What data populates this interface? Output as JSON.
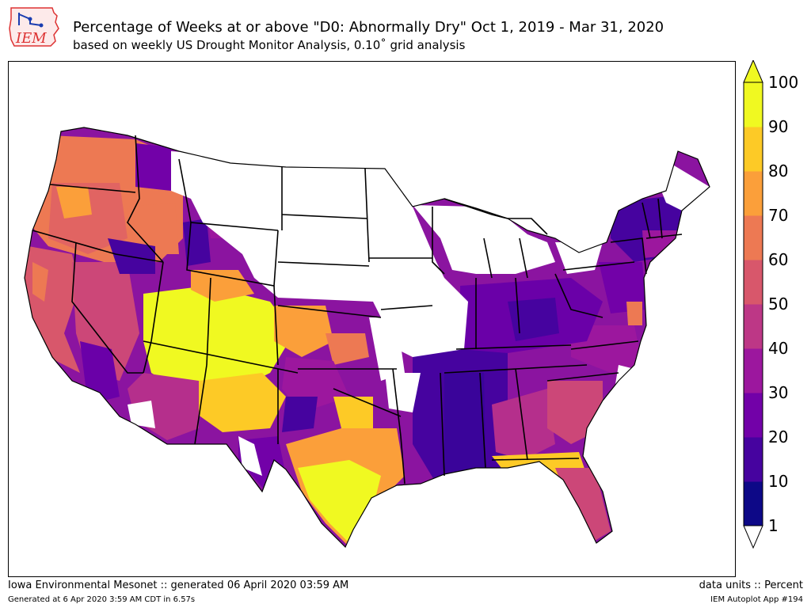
{
  "header": {
    "logo_text": "IEM",
    "title": "Percentage of Weeks at or above \"D0: Abnormally Dry\" Oct 1, 2019 - Mar 31, 2020",
    "subtitle": "based on weekly US Drought Monitor Analysis, 0.10˚ grid analysis"
  },
  "colorbar": {
    "ticks": [
      "1",
      "10",
      "20",
      "30",
      "40",
      "50",
      "60",
      "70",
      "80",
      "90",
      "100"
    ],
    "colors": [
      "#0d0887",
      "#46039f",
      "#7201a8",
      "#9c179e",
      "#bd3786",
      "#d8576b",
      "#ed7953",
      "#fb9f3a",
      "#fdca26",
      "#f0f921"
    ],
    "under_color": "#ffffff",
    "over_color": "#f0f921"
  },
  "footer": {
    "left_line1": "Iowa Environmental Mesonet :: generated 06 April 2020 03:59 AM",
    "left_line2": "Generated at 6 Apr 2020 3:59 AM CDT in 6.57s",
    "right_line1": "data units :: Percent",
    "right_line2": "IEM Autoplot App #194"
  }
}
